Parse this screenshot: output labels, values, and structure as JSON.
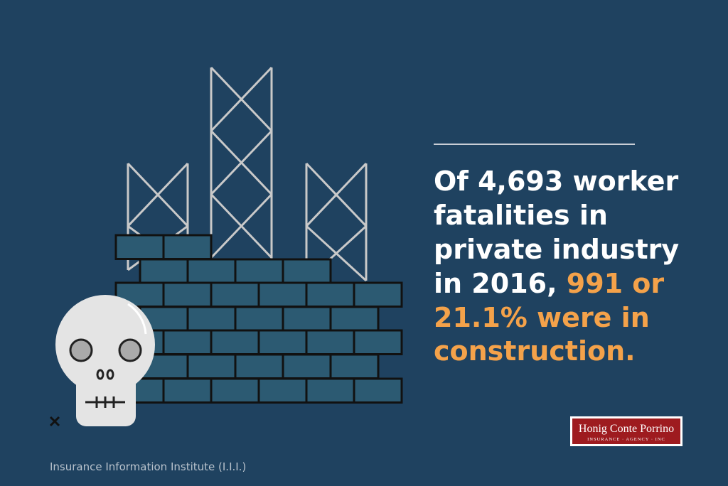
{
  "headline": {
    "white": [
      "Of 4,693 worker",
      "fatalities in",
      "private industry",
      "in 2016,"
    ],
    "orange": [
      "991 or",
      "21.1% were in",
      "construction."
    ]
  },
  "source": "Insurance Information Institute (I.I.I.)",
  "logo": {
    "name": "Honig Conte Porrino",
    "tagline": "INSURANCE · AGENCY · INC"
  }
}
